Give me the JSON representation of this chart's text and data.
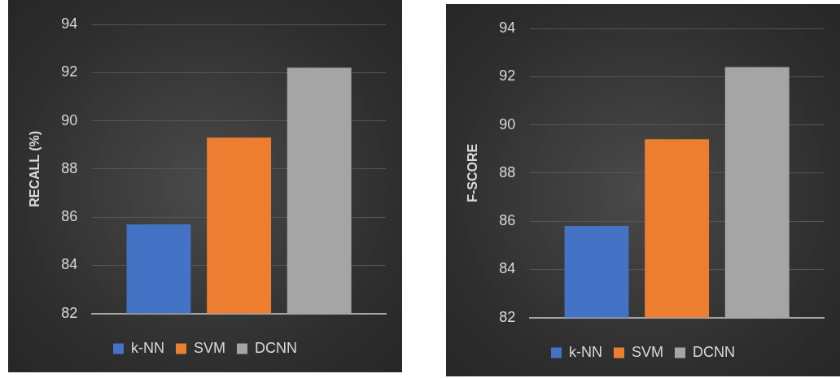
{
  "chart_data": [
    {
      "type": "bar",
      "ylabel": "RECALL (%)",
      "categories": [
        null
      ],
      "ylim": [
        82,
        94
      ],
      "yticks": [
        82,
        84,
        86,
        88,
        90,
        92,
        94
      ],
      "grid": "y",
      "legend": "bottom",
      "series": [
        {
          "name": "k-NN",
          "color": "#4472c4",
          "values": [
            85.7
          ]
        },
        {
          "name": "SVM",
          "color": "#ed7d31",
          "values": [
            89.3
          ]
        },
        {
          "name": "DCNN",
          "color": "#a5a5a5",
          "values": [
            92.2
          ]
        }
      ]
    },
    {
      "type": "bar",
      "ylabel": "F-SCORE",
      "categories": [
        null
      ],
      "ylim": [
        82,
        94
      ],
      "yticks": [
        82,
        84,
        86,
        88,
        90,
        92,
        94
      ],
      "grid": "y",
      "legend": "bottom",
      "series": [
        {
          "name": "k-NN",
          "color": "#4472c4",
          "values": [
            85.8
          ]
        },
        {
          "name": "SVM",
          "color": "#ed7d31",
          "values": [
            89.4
          ]
        },
        {
          "name": "DCNN",
          "color": "#a5a5a5",
          "values": [
            92.4
          ]
        }
      ]
    }
  ]
}
